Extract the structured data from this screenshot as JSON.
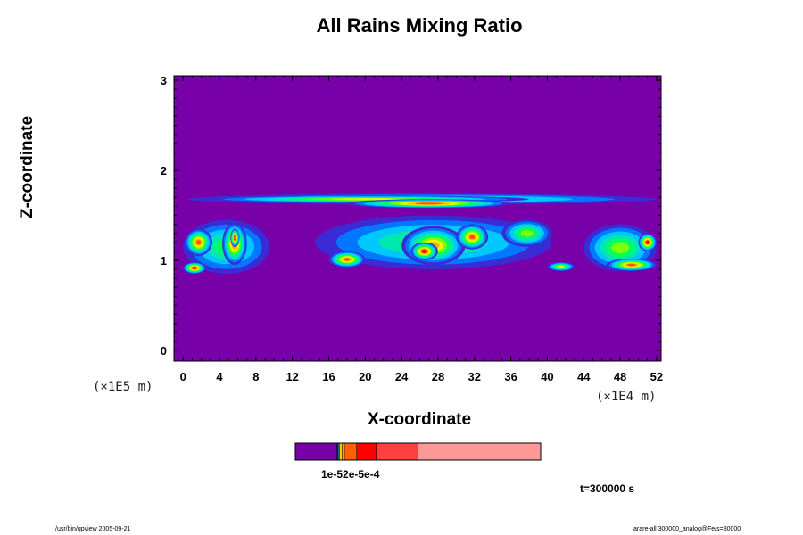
{
  "chart_data": {
    "type": "heatmap",
    "title": "All Rains Mixing Ratio",
    "xlabel": "X-coordinate",
    "ylabel": "Z-coordinate",
    "x_scale_label": "(×1E4 m)",
    "y_scale_label": "(×1E5 m)",
    "x_ticks": [
      "0",
      "4",
      "8",
      "12",
      "16",
      "20",
      "24",
      "28",
      "32",
      "36",
      "40",
      "44",
      "48",
      "52"
    ],
    "y_ticks": [
      "0",
      "1",
      "2",
      "3"
    ],
    "xlim": [
      -1,
      52.5
    ],
    "ylim": [
      -0.12,
      3.05
    ],
    "background_color": "#7700a8",
    "palette": [
      "#7700a8",
      "#3a2bd4",
      "#0077ff",
      "#00c8ff",
      "#00e8b0",
      "#00ff60",
      "#80ff00",
      "#e8ff00",
      "#ffb000",
      "#ff5000",
      "#e80000",
      "#ff7878"
    ],
    "cells": [
      {
        "x": [
          0.5,
          52
        ],
        "z": [
          1.62,
          1.74
        ],
        "level": 5
      },
      {
        "x": [
          2.0,
          38
        ],
        "z": [
          1.64,
          1.72
        ],
        "level": 7
      },
      {
        "x": [
          18.0,
          36
        ],
        "z": [
          1.58,
          1.68
        ],
        "level": 9
      },
      {
        "x": [
          0.0,
          9.5
        ],
        "z": [
          0.85,
          1.45
        ],
        "level": 5
      },
      {
        "x": [
          0.2,
          3.2
        ],
        "z": [
          1.05,
          1.35
        ],
        "level": 9
      },
      {
        "x": [
          4.3,
          7.0
        ],
        "z": [
          0.95,
          1.42
        ],
        "level": 9
      },
      {
        "x": [
          5.2,
          6.2
        ],
        "z": [
          1.15,
          1.35
        ],
        "level": 11
      },
      {
        "x": [
          0.0,
          2.5
        ],
        "z": [
          0.85,
          0.98
        ],
        "level": 10
      },
      {
        "x": [
          14.5,
          40.5
        ],
        "z": [
          0.9,
          1.5
        ],
        "level": 5
      },
      {
        "x": [
          16.0,
          20.0
        ],
        "z": [
          0.92,
          1.1
        ],
        "level": 9
      },
      {
        "x": [
          24.0,
          31.0
        ],
        "z": [
          0.95,
          1.38
        ],
        "level": 8
      },
      {
        "x": [
          25.0,
          28.0
        ],
        "z": [
          1.0,
          1.2
        ],
        "level": 10
      },
      {
        "x": [
          30.0,
          33.5
        ],
        "z": [
          1.12,
          1.4
        ],
        "level": 9
      },
      {
        "x": [
          35.0,
          40.5
        ],
        "z": [
          1.15,
          1.45
        ],
        "level": 6
      },
      {
        "x": [
          40.0,
          43.0
        ],
        "z": [
          0.88,
          0.98
        ],
        "level": 7
      },
      {
        "x": [
          44.0,
          52.0
        ],
        "z": [
          0.88,
          1.4
        ],
        "level": 6
      },
      {
        "x": [
          46.5,
          52.0
        ],
        "z": [
          0.88,
          1.02
        ],
        "level": 9
      },
      {
        "x": [
          50.0,
          52.0
        ],
        "z": [
          1.1,
          1.3
        ],
        "level": 10
      }
    ],
    "colorbar": {
      "segments": [
        {
          "from": 0.0,
          "to": 0.17,
          "color": "#7700a8"
        },
        {
          "from": 0.17,
          "to": 0.175,
          "color": "#0000ff"
        },
        {
          "from": 0.175,
          "to": 0.18,
          "color": "#00c0ff"
        },
        {
          "from": 0.18,
          "to": 0.19,
          "color": "#ffd000"
        },
        {
          "from": 0.19,
          "to": 0.2,
          "color": "#ffa000"
        },
        {
          "from": 0.2,
          "to": 0.25,
          "color": "#ff6000"
        },
        {
          "from": 0.25,
          "to": 0.33,
          "color": "#ff0000"
        },
        {
          "from": 0.33,
          "to": 0.5,
          "color": "#ff4040"
        },
        {
          "from": 0.5,
          "to": 1.0,
          "color": "#ff9898"
        }
      ],
      "label": "1e-52e-5e-4"
    }
  },
  "annotations": {
    "time": "t=300000 s",
    "footer_left": "/usr/bin/gpview 2005-09-21",
    "footer_right": "arare-all 300000_analog@Fe/s=30000"
  }
}
